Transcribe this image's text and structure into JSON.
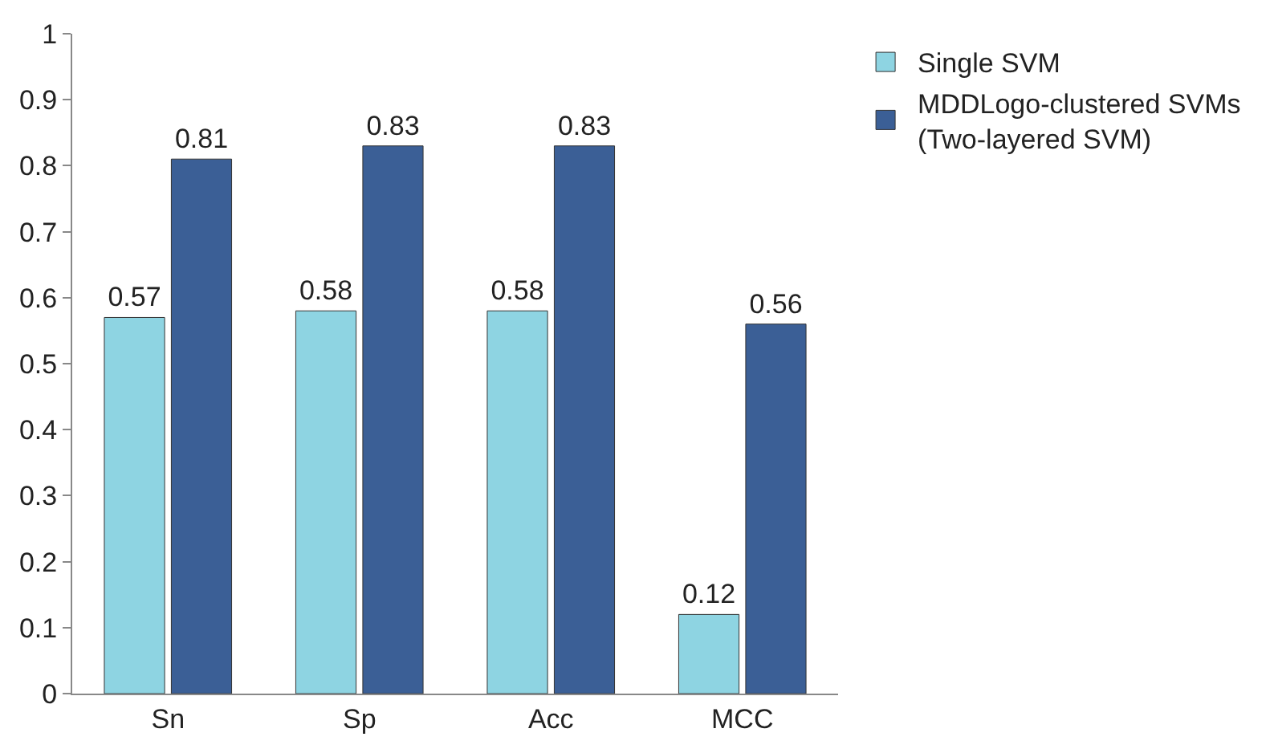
{
  "chart_data": {
    "type": "bar",
    "categories": [
      "Sn",
      "Sp",
      "Acc",
      "MCC"
    ],
    "series": [
      {
        "name": "Single SVM",
        "color": "#8ed4e2",
        "values": [
          0.57,
          0.58,
          0.58,
          0.12
        ]
      },
      {
        "name": "MDDLogo-clustered SVMs (Two-layered SVM)",
        "color": "#3b5f96",
        "values": [
          0.81,
          0.83,
          0.83,
          0.56
        ]
      }
    ],
    "ylim": [
      0,
      1
    ],
    "yticks": [
      0,
      0.1,
      0.2,
      0.3,
      0.4,
      0.5,
      0.6,
      0.7,
      0.8,
      0.9,
      1
    ],
    "data_labels": true,
    "legend": "top right"
  }
}
